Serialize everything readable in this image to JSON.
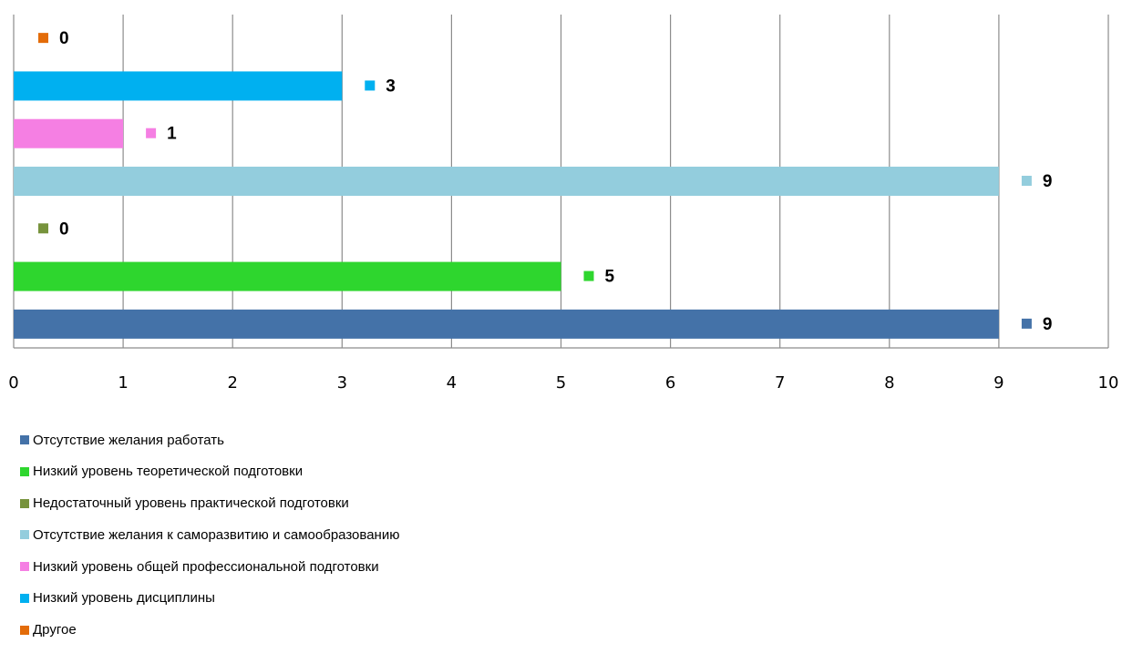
{
  "chart_data": {
    "type": "bar",
    "orientation": "horizontal",
    "xlim": [
      0,
      10
    ],
    "xticks": [
      0,
      1,
      2,
      3,
      4,
      5,
      6,
      7,
      8,
      9,
      10
    ],
    "grid": true,
    "legend_position": "bottom-left",
    "data_labels": true,
    "series": [
      {
        "name": "Отсутствие желания работать",
        "value": 9,
        "color": "#4472A8"
      },
      {
        "name": "Низкий уровень теоретической подготовки",
        "value": 5,
        "color": "#2ED62E"
      },
      {
        "name": "Недостаточный уровень практической подготовки",
        "value": 0,
        "color": "#77933C"
      },
      {
        "name": "Отсутствие желания к саморазвитию и самообразованию",
        "value": 9,
        "color": "#93CDDD"
      },
      {
        "name": "Низкий уровень общей профессиональной подготовки",
        "value": 1,
        "color": "#F57FE3"
      },
      {
        "name": "Низкий уровень дисциплины",
        "value": 3,
        "color": "#00B0F0"
      },
      {
        "name": "Другое",
        "value": 0,
        "color": "#E36C09"
      }
    ]
  }
}
